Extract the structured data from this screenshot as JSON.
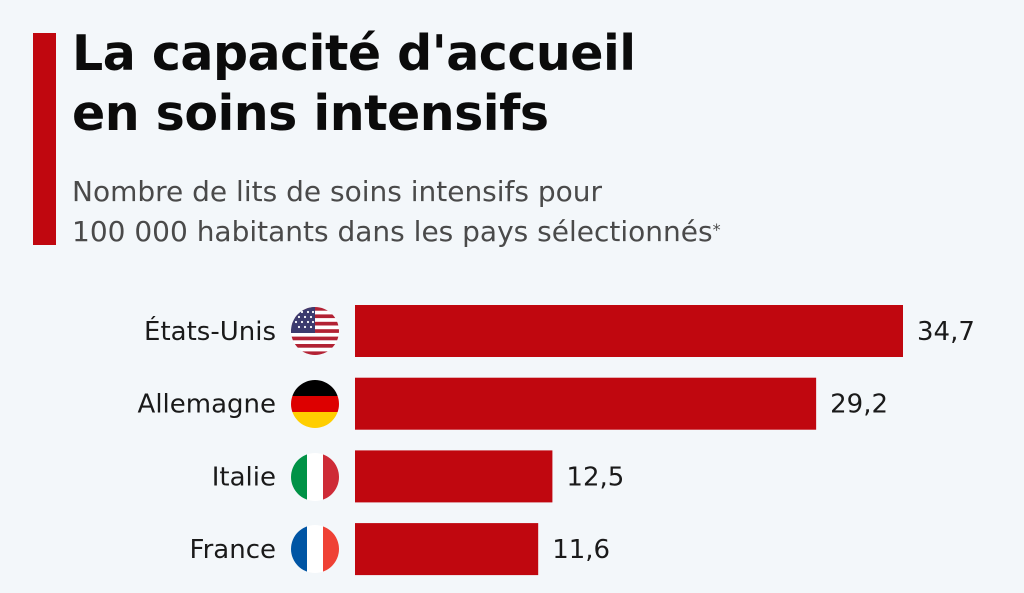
{
  "header": {
    "title_line1": "La capacité d'accueil",
    "title_line2": "en soins intensifs",
    "subtitle_line1": "Nombre de lits de soins intensifs pour",
    "subtitle_line2": "100 000 habitants dans les pays sélectionnés",
    "subtitle_footnote_mark": "*"
  },
  "colors": {
    "accent": "#c0070f",
    "bar": "#c0070f",
    "background": "#f3f7fa",
    "title": "#0b0b0b",
    "subtitle": "#4a4a4a"
  },
  "chart_data": {
    "type": "bar",
    "orientation": "horizontal",
    "categories": [
      "États-Unis",
      "Allemagne",
      "Italie",
      "France"
    ],
    "values": [
      34.7,
      29.2,
      12.5,
      11.6
    ],
    "value_labels": [
      "34,7",
      "29,2",
      "12,5",
      "11,6"
    ],
    "flags": [
      "us-flag-icon",
      "germany-flag-icon",
      "italy-flag-icon",
      "france-flag-icon"
    ],
    "xlim": [
      0,
      34.7
    ],
    "grid": false,
    "axes_visible": false
  }
}
